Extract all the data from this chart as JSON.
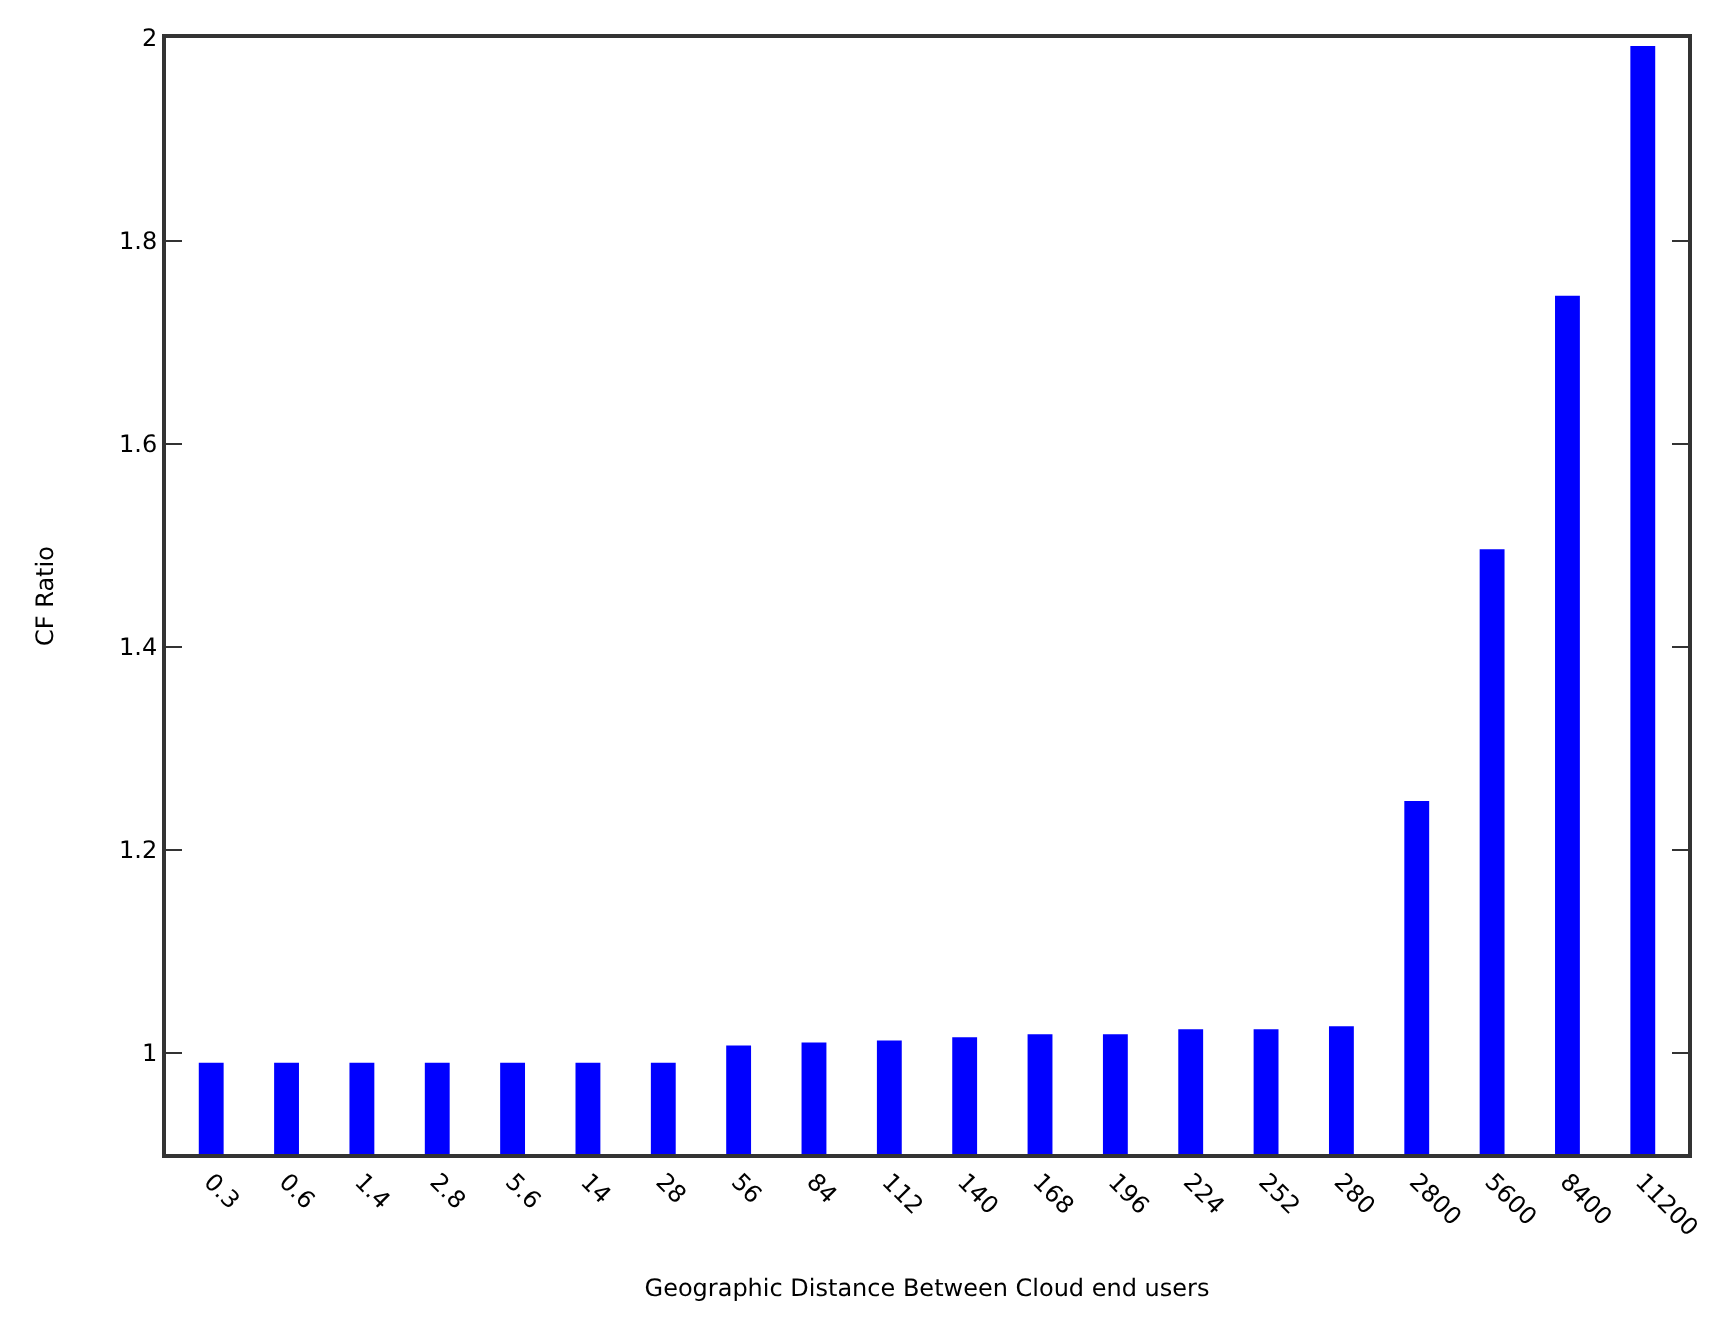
{
  "chart_data": {
    "type": "bar",
    "xlabel": "Geographic Distance Between Cloud end users",
    "ylabel": "CF Ratio",
    "categories": [
      "0.3",
      "0.6",
      "1.4",
      "2.8",
      "5.6",
      "14",
      "28",
      "56",
      "84",
      "112",
      "140",
      "168",
      "196",
      "224",
      "252",
      "280",
      "2800",
      "5600",
      "8400",
      "11200"
    ],
    "values": [
      0.99,
      0.99,
      0.99,
      0.99,
      0.99,
      0.99,
      0.99,
      1.007,
      1.01,
      1.012,
      1.015,
      1.018,
      1.018,
      1.023,
      1.023,
      1.026,
      1.248,
      1.496,
      1.746,
      1.992
    ],
    "color": "#0000ff",
    "ylim": [
      0.9,
      2
    ],
    "yticks": [
      1,
      1.2,
      1.4,
      1.6,
      1.8,
      2
    ]
  }
}
